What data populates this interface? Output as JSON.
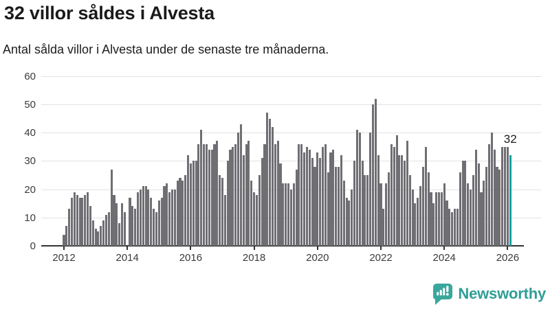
{
  "header": {
    "title": "32 villor såldes i Alvesta",
    "subtitle": "Antal sålda villor i Alvesta under de senaste tre månaderna."
  },
  "chart_data": {
    "type": "bar",
    "title": "32 villor såldes i Alvesta",
    "subtitle": "Antal sålda villor i Alvesta under de senaste tre månaderna.",
    "x_start": "2012-01",
    "x_end": "2026-02",
    "frequency": "monthly",
    "values": [
      4,
      7,
      13,
      17,
      19,
      18,
      17,
      17,
      18,
      19,
      14,
      9,
      6,
      5,
      7,
      9,
      11,
      12,
      27,
      18,
      15,
      8,
      15,
      12,
      0,
      17,
      14,
      13,
      19,
      20,
      21,
      21,
      20,
      17,
      13,
      12,
      16,
      17,
      21,
      22,
      19,
      20,
      20,
      23,
      24,
      23,
      25,
      32,
      29,
      30,
      30,
      36,
      41,
      36,
      36,
      34,
      34,
      36,
      37,
      25,
      24,
      18,
      30,
      34,
      35,
      36,
      40,
      43,
      32,
      36,
      37,
      23,
      19,
      18,
      25,
      31,
      36,
      47,
      45,
      42,
      36,
      37,
      29,
      22,
      22,
      22,
      20,
      22,
      27,
      36,
      36,
      33,
      35,
      34,
      31,
      28,
      33,
      31,
      35,
      36,
      26,
      33,
      34,
      28,
      28,
      32,
      23,
      17,
      16,
      20,
      30,
      41,
      40,
      30,
      25,
      25,
      40,
      50,
      52,
      32,
      22,
      13,
      22,
      26,
      36,
      35,
      39,
      32,
      32,
      30,
      37,
      25,
      20,
      15,
      17,
      21,
      28,
      35,
      26,
      19,
      15,
      19,
      19,
      19,
      22,
      16,
      13,
      12,
      13,
      13,
      26,
      30,
      30,
      22,
      20,
      25,
      34,
      29,
      19,
      23,
      28,
      36,
      40,
      34,
      28,
      27,
      35,
      35,
      35,
      32
    ],
    "ylim": [
      0,
      60
    ],
    "y_ticks": [
      0,
      10,
      20,
      30,
      40,
      50,
      60
    ],
    "x_tick_labels": [
      "2012",
      "2014",
      "2016",
      "2018",
      "2020",
      "2022",
      "2024",
      "2026"
    ],
    "grid": true,
    "legend": false,
    "bar_color": "#6e6e73",
    "highlight_color": "#169f9f",
    "highlight_index": 169,
    "annotation": {
      "text": "32"
    },
    "axis_color": "#333333",
    "gridline_color": "#e2e2e2",
    "tick_label_color": "#3a3a3a"
  },
  "footer": {
    "brand": "Newsworthy",
    "brand_color": "#2f9e96"
  }
}
